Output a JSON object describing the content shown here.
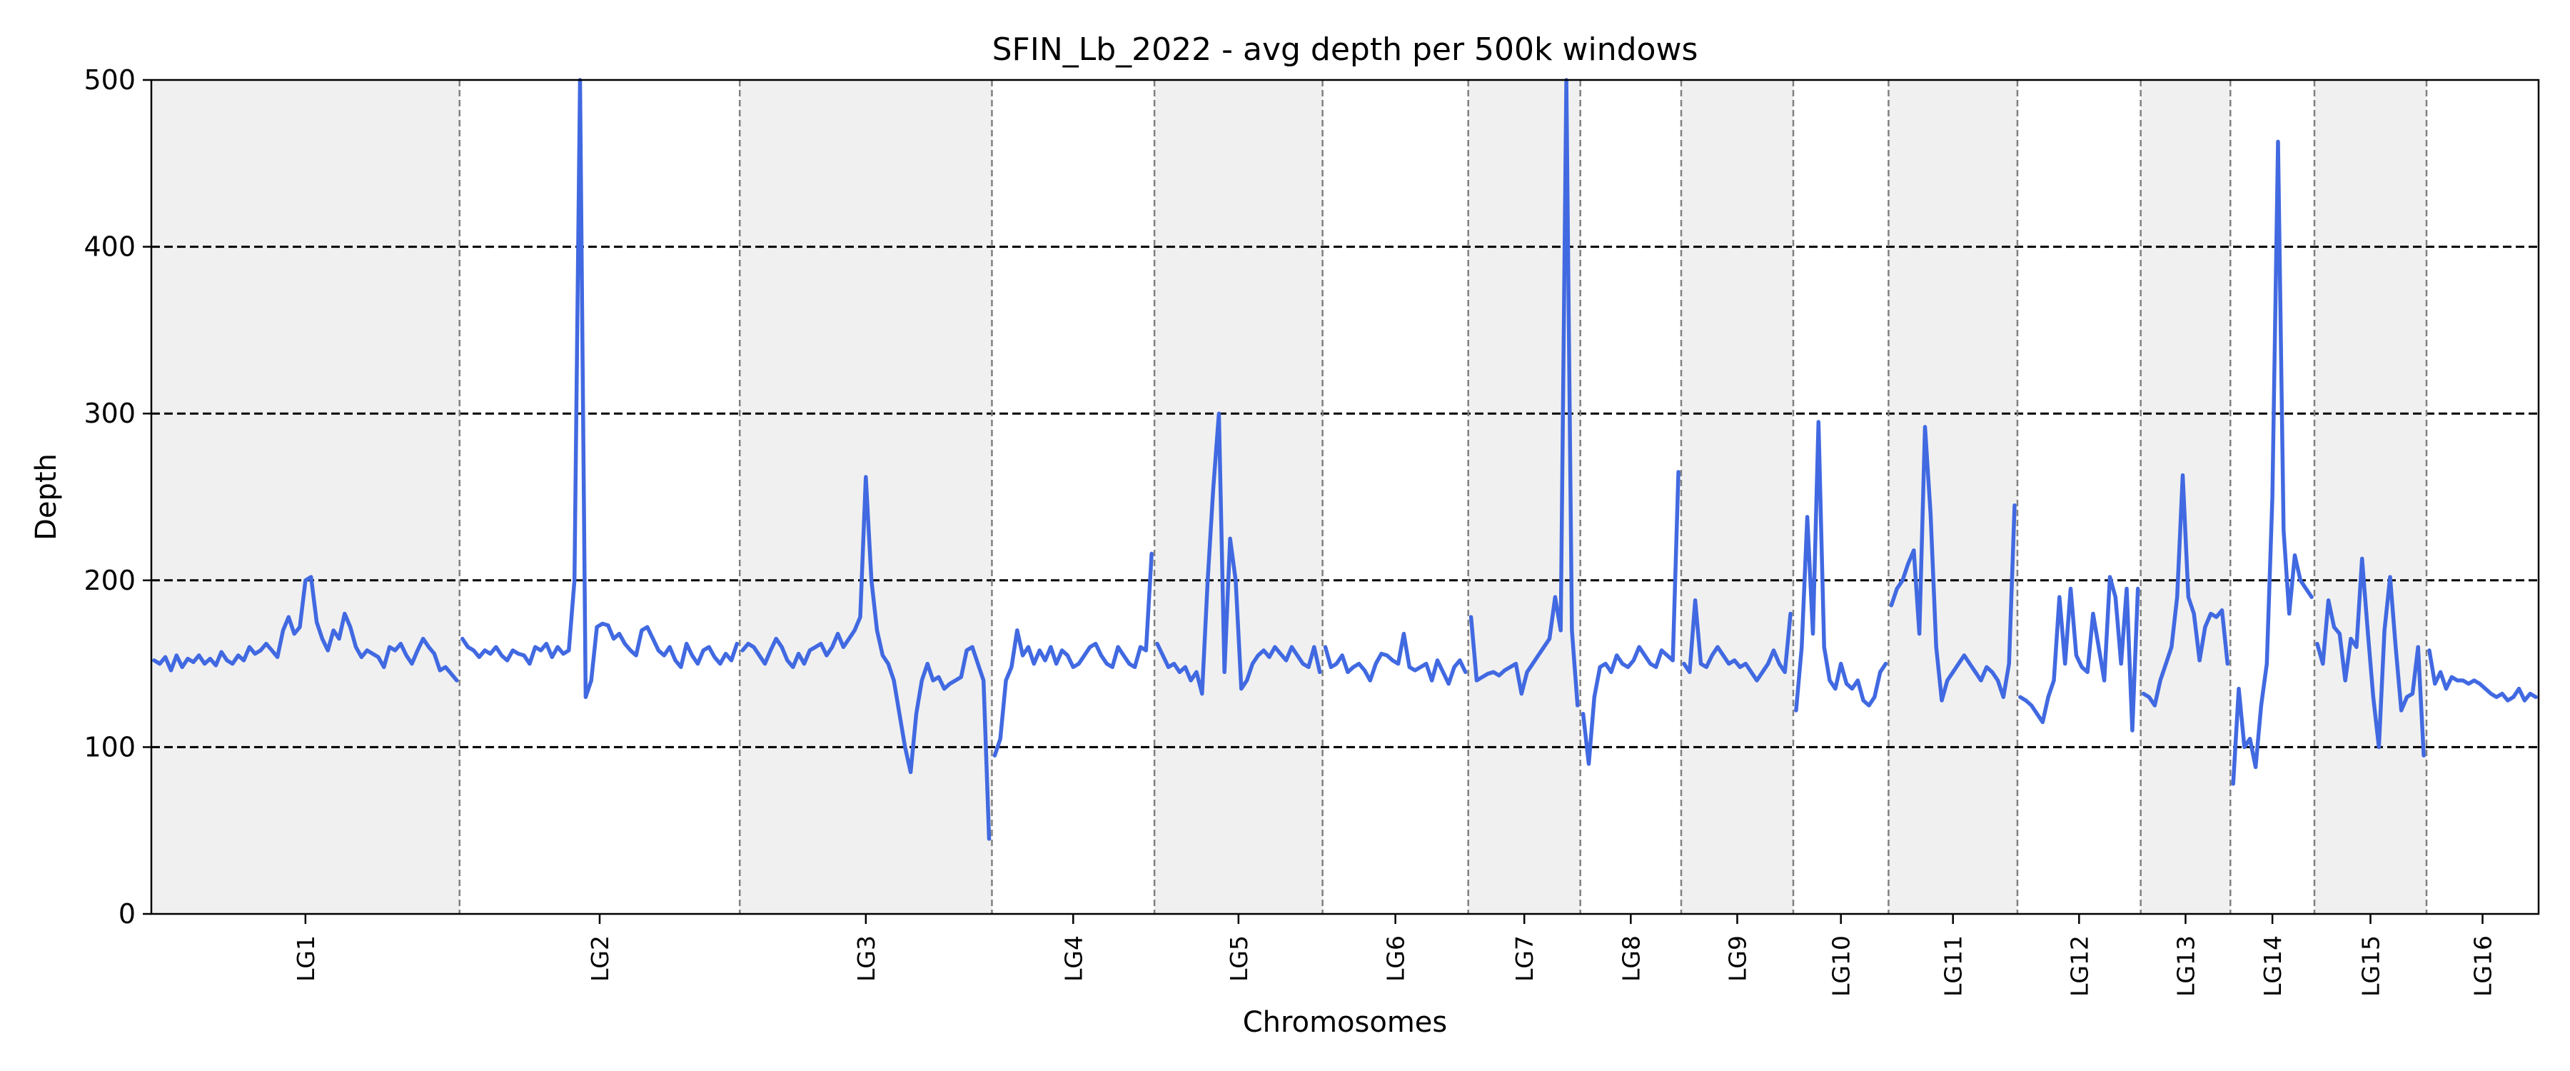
{
  "chart_data": {
    "type": "line",
    "title": "SFIN_Lb_2022 - avg depth per 500k windows",
    "xlabel": "Chromosomes",
    "ylabel": "Depth",
    "ylim": [
      0,
      500
    ],
    "yticks": [
      0,
      100,
      200,
      300,
      400,
      500
    ],
    "hlines": [
      100,
      200,
      300,
      400
    ],
    "line_color": "#4169E1",
    "shade_color": "#F0F0F0",
    "chromosomes": [
      {
        "name": "LG1",
        "values": [
          152,
          150,
          154,
          146,
          155,
          148,
          153,
          151,
          155,
          150,
          153,
          149,
          157,
          152,
          150,
          155,
          152,
          160,
          156,
          158,
          162,
          158,
          154,
          170,
          178,
          168,
          172,
          200,
          202,
          175,
          165,
          158,
          170,
          165,
          180,
          172,
          160,
          154,
          158,
          156,
          154,
          148,
          160,
          158,
          162,
          155,
          150,
          158,
          165,
          160,
          156,
          146,
          148,
          144,
          140
        ]
      },
      {
        "name": "LG2",
        "values": [
          165,
          160,
          158,
          154,
          158,
          156,
          160,
          155,
          152,
          158,
          156,
          155,
          150,
          160,
          158,
          162,
          154,
          160,
          156,
          158,
          200,
          500,
          130,
          140,
          172,
          174,
          173,
          165,
          168,
          162,
          158,
          155,
          170,
          172,
          165,
          158,
          155,
          160,
          152,
          148,
          162,
          155,
          150,
          158,
          160,
          154,
          150,
          156,
          152,
          162
        ]
      },
      {
        "name": "LG3",
        "values": [
          158,
          162,
          160,
          155,
          150,
          158,
          165,
          160,
          152,
          148,
          156,
          150,
          158,
          160,
          162,
          155,
          160,
          168,
          160,
          165,
          170,
          178,
          262,
          200,
          170,
          155,
          150,
          140,
          120,
          100,
          85,
          120,
          140,
          150,
          140,
          142,
          135,
          138,
          140,
          142,
          158,
          160,
          150,
          140,
          45
        ]
      },
      {
        "name": "LG4",
        "values": [
          95,
          105,
          140,
          148,
          170,
          155,
          160,
          150,
          158,
          152,
          160,
          150,
          158,
          155,
          148,
          150,
          155,
          160,
          162,
          155,
          150,
          148,
          160,
          155,
          150,
          148,
          160,
          158,
          216
        ]
      },
      {
        "name": "LG5",
        "values": [
          162,
          155,
          148,
          150,
          145,
          148,
          140,
          145,
          132,
          200,
          255,
          300,
          145,
          225,
          200,
          135,
          140,
          150,
          155,
          158,
          154,
          160,
          156,
          152,
          160,
          155,
          150,
          148,
          160,
          145
        ]
      },
      {
        "name": "LG6",
        "values": [
          160,
          148,
          150,
          155,
          145,
          148,
          150,
          146,
          140,
          150,
          156,
          155,
          152,
          150,
          168,
          148,
          146,
          148,
          150,
          140,
          152,
          145,
          138,
          148,
          152,
          145
        ]
      },
      {
        "name": "LG7",
        "values": [
          178,
          140,
          142,
          144,
          145,
          143,
          146,
          148,
          150,
          132,
          145,
          150,
          155,
          160,
          165,
          190,
          170,
          500,
          170,
          125
        ]
      },
      {
        "name": "LG8",
        "values": [
          120,
          90,
          130,
          148,
          150,
          145,
          155,
          150,
          148,
          152,
          160,
          155,
          150,
          148,
          158,
          155,
          152,
          265
        ]
      },
      {
        "name": "LG9",
        "values": [
          150,
          145,
          188,
          150,
          148,
          155,
          160,
          155,
          150,
          152,
          148,
          150,
          145,
          140,
          145,
          150,
          158,
          150,
          145,
          180
        ]
      },
      {
        "name": "LG10",
        "values": [
          122,
          160,
          238,
          168,
          295,
          160,
          140,
          135,
          150,
          138,
          135,
          140,
          128,
          125,
          130,
          145,
          150
        ]
      },
      {
        "name": "LG11",
        "values": [
          185,
          195,
          200,
          210,
          218,
          168,
          292,
          240,
          160,
          128,
          140,
          145,
          150,
          155,
          150,
          145,
          140,
          148,
          145,
          140,
          130,
          150,
          245
        ]
      },
      {
        "name": "LG12",
        "values": [
          130,
          128,
          125,
          120,
          115,
          130,
          140,
          190,
          150,
          195,
          155,
          148,
          145,
          180,
          160,
          140,
          202,
          190,
          150,
          195,
          110,
          195
        ]
      },
      {
        "name": "LG13",
        "values": [
          132,
          130,
          125,
          140,
          150,
          160,
          190,
          263,
          190,
          180,
          152,
          172,
          180,
          178,
          182,
          150
        ]
      },
      {
        "name": "LG14",
        "values": [
          78,
          135,
          100,
          105,
          88,
          125,
          150,
          250,
          463,
          230,
          180,
          215,
          200,
          195,
          190
        ]
      },
      {
        "name": "LG15",
        "values": [
          162,
          150,
          188,
          172,
          168,
          140,
          165,
          160,
          213,
          170,
          130,
          100,
          170,
          202,
          160,
          122,
          130,
          132,
          160,
          95
        ]
      },
      {
        "name": "LG16",
        "values": [
          158,
          138,
          145,
          135,
          142,
          140,
          140,
          138,
          140,
          138,
          135,
          132,
          130,
          132,
          128,
          130,
          135,
          128,
          132,
          130
        ]
      }
    ]
  }
}
